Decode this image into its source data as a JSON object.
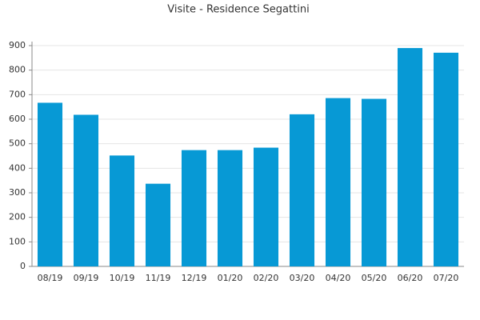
{
  "chart_data": {
    "type": "bar",
    "title": "Visite - Residence Segattini",
    "categories": [
      "08/19",
      "09/19",
      "10/19",
      "11/19",
      "12/19",
      "01/20",
      "02/20",
      "03/20",
      "04/20",
      "05/20",
      "06/20",
      "07/20"
    ],
    "values": [
      667,
      618,
      452,
      337,
      474,
      474,
      484,
      620,
      686,
      683,
      890,
      871
    ],
    "color": "#0799d5",
    "ylim": [
      0,
      900
    ],
    "yticks": [
      0,
      100,
      200,
      300,
      400,
      500,
      600,
      700,
      800,
      900
    ],
    "grid": true
  }
}
